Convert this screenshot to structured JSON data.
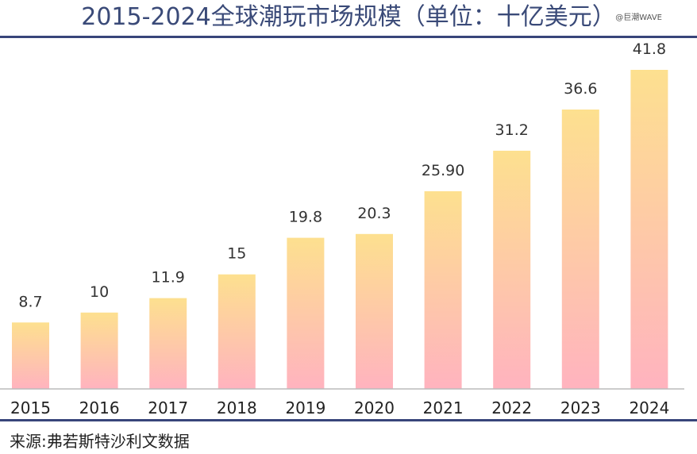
{
  "watermark": "@巨潮WAVE",
  "source": "来源:弗若斯特沙利文数据",
  "colors": {
    "title": "#3a4a78",
    "rule": "#38457a",
    "bar_top": "#fde08f",
    "bar_bottom": "#ffb3bf",
    "axis": "#bbbbbb"
  },
  "chart_data": {
    "type": "bar",
    "title": "2015-2024全球潮玩市场规模（单位：十亿美元）",
    "categories": [
      "2015",
      "2016",
      "2017",
      "2018",
      "2019",
      "2020",
      "2021",
      "2022",
      "2023",
      "2024"
    ],
    "values": [
      8.7,
      10,
      11.9,
      15,
      19.8,
      20.3,
      25.9,
      31.2,
      36.6,
      41.8
    ],
    "value_labels": [
      "8.7",
      "10",
      "11.9",
      "15",
      "19.8",
      "20.3",
      "25.90",
      "31.2",
      "36.6",
      "41.8"
    ],
    "xlabel": "",
    "ylabel": "",
    "ylim": [
      0,
      41.8
    ],
    "grid": false,
    "legend": "none"
  }
}
